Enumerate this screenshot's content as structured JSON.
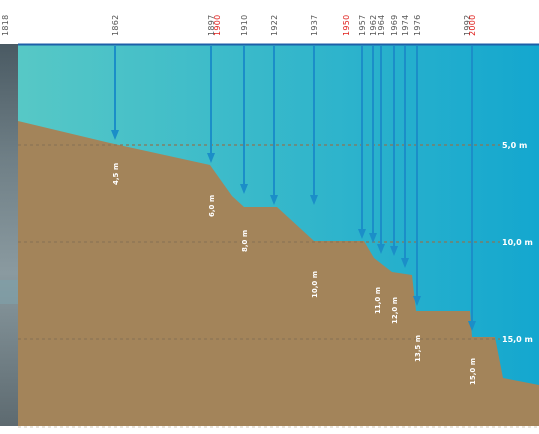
{
  "colors": {
    "water_top": "#57c8c6",
    "water_bottom": "#14a7cf",
    "seabed": "#a3845a",
    "arrow": "#1b8ec8",
    "year_text": "#555555",
    "year_highlight": "#e0201c",
    "surface_line": "#1d5fa8",
    "gridline": "#8a7556"
  },
  "years": [
    {
      "label": "1818",
      "highlight": false
    },
    {
      "label": "1862",
      "highlight": false
    },
    {
      "label": "1897",
      "highlight": false
    },
    {
      "label": "1900",
      "highlight": true
    },
    {
      "label": "1910",
      "highlight": false
    },
    {
      "label": "1922",
      "highlight": false
    },
    {
      "label": "1937",
      "highlight": false
    },
    {
      "label": "1950",
      "highlight": true
    },
    {
      "label": "1957",
      "highlight": false
    },
    {
      "label": "1962",
      "highlight": false
    },
    {
      "label": "1964",
      "highlight": false
    },
    {
      "label": "1969",
      "highlight": false
    },
    {
      "label": "1974",
      "highlight": false
    },
    {
      "label": "1976",
      "highlight": false
    },
    {
      "label": "1992",
      "highlight": false
    },
    {
      "label": "2000",
      "highlight": true
    }
  ],
  "depth_labels": [
    "4,5 m",
    "6,0 m",
    "8,0 m",
    "10,0 m",
    "11,0 m",
    "12,0 m",
    "13,5 m",
    "15,0 m"
  ],
  "depth_scale": [
    "5,0 m",
    "10,0 m",
    "15,0 m"
  ]
}
